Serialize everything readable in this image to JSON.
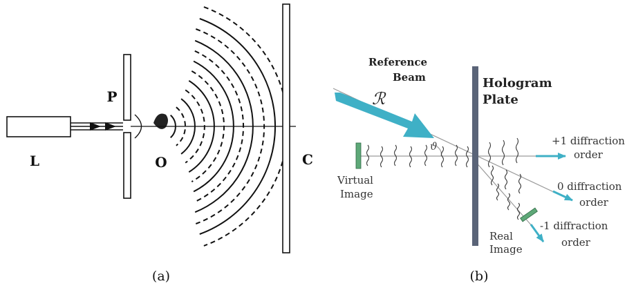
{
  "panel_a": {
    "label_L": "L",
    "label_P": "P",
    "label_O": "O",
    "label_C": "C",
    "caption": "(a)"
  },
  "panel_b": {
    "reference_beam_line1": "Reference",
    "reference_beam_line2": "Beam",
    "symbol_R": "ℛ",
    "symbol_theta": "ϑ",
    "hologram_line1": "Hologram",
    "hologram_line2": "Plate",
    "virtual_line1": "Virtual",
    "virtual_line2": "Image",
    "real_line1": "Real",
    "real_line2": "Image",
    "order_plus1_line1": "+1 diffraction",
    "order_plus1_line2": "order",
    "order_0_line1": "0 diffraction",
    "order_0_line2": "order",
    "order_minus1_line1": "-1 diffraction",
    "order_minus1_line2": "order",
    "caption": "(b)"
  },
  "colors": {
    "line": "#111111",
    "beam": "#3fb0c6",
    "plate": "#5a6478",
    "image_marker": "#5ea878",
    "ray": "#9a9a9a",
    "text": "#222222"
  }
}
